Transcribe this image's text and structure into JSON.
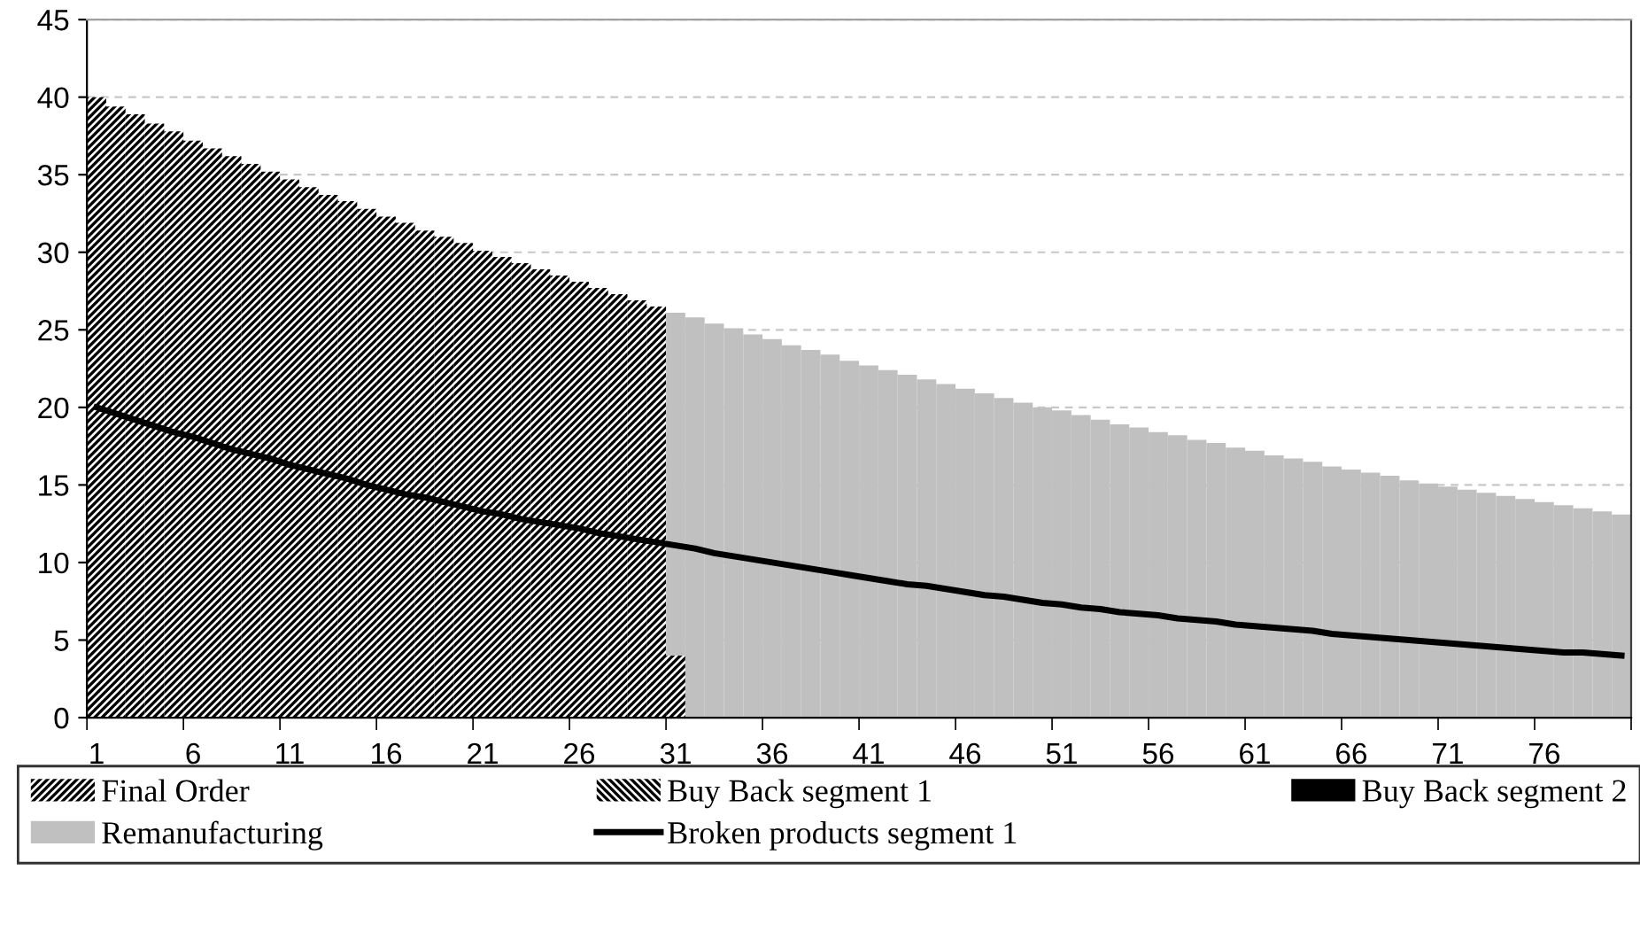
{
  "chart_data": {
    "type": "bar",
    "stacked": true,
    "categories": [
      "1",
      null,
      null,
      null,
      null,
      "6",
      null,
      null,
      null,
      null,
      "11",
      null,
      null,
      null,
      null,
      "16",
      null,
      null,
      null,
      null,
      "21",
      null,
      null,
      null,
      null,
      "26",
      null,
      null,
      null,
      null,
      "31",
      null,
      null,
      null,
      null,
      "36",
      null,
      null,
      null,
      null,
      "41",
      null,
      null,
      null,
      null,
      "46",
      null,
      null,
      null,
      null,
      "51",
      null,
      null,
      null,
      null,
      "56",
      null,
      null,
      null,
      null,
      "61",
      null,
      null,
      null,
      null,
      "66",
      null,
      null,
      null,
      null,
      "71",
      null,
      null,
      null,
      null,
      "76",
      null,
      null,
      null,
      null
    ],
    "ylim": [
      0,
      45
    ],
    "yticks": [
      0,
      5,
      10,
      15,
      20,
      25,
      30,
      35,
      40,
      45
    ],
    "grid": "y",
    "legend": "bottom",
    "series": [
      {
        "name": "Final Order",
        "color": "#000000",
        "values": [
          40.0,
          39.4,
          38.9,
          38.3,
          37.8,
          37.2,
          36.7,
          36.2,
          35.7,
          35.2,
          34.7,
          34.2,
          33.7,
          33.3,
          32.8,
          32.3,
          31.9,
          31.4,
          31.0,
          30.6,
          30.1,
          29.7,
          29.3,
          28.9,
          28.5,
          28.1,
          27.7,
          27.3,
          26.9,
          26.5,
          4.0,
          null,
          null,
          null,
          null,
          null,
          null,
          null,
          null,
          null,
          null,
          null,
          null,
          null,
          null,
          null,
          null,
          null,
          null,
          null,
          null,
          null,
          null,
          null,
          null,
          null,
          null,
          null,
          null,
          null,
          null,
          null,
          null,
          null,
          null,
          null,
          null,
          null,
          null,
          null,
          null,
          null,
          null,
          null,
          null,
          null,
          null,
          null,
          null,
          null
        ]
      },
      {
        "name": "Buy Back segment 1",
        "color": "#000000",
        "values": [
          null,
          null,
          null,
          null,
          null,
          null,
          null,
          null,
          null,
          null,
          null,
          null,
          null,
          null,
          null,
          null,
          null,
          null,
          null,
          null,
          null,
          null,
          null,
          null,
          null,
          null,
          null,
          null,
          null,
          null,
          null,
          null,
          null,
          null,
          null,
          null,
          null,
          null,
          null,
          null,
          null,
          null,
          null,
          null,
          null,
          null,
          null,
          null,
          null,
          null,
          null,
          null,
          null,
          null,
          null,
          null,
          null,
          null,
          null,
          null,
          null,
          null,
          null,
          null,
          null,
          null,
          null,
          null,
          null,
          null,
          null,
          null,
          null,
          null,
          null,
          null,
          null,
          null,
          null,
          null
        ]
      },
      {
        "name": "Buy Back segment 2",
        "color": "#000000",
        "values": [
          null,
          null,
          null,
          null,
          null,
          null,
          null,
          null,
          null,
          null,
          null,
          null,
          null,
          null,
          null,
          null,
          null,
          null,
          null,
          null,
          null,
          null,
          null,
          null,
          null,
          null,
          null,
          null,
          null,
          null,
          null,
          null,
          null,
          null,
          null,
          null,
          null,
          null,
          null,
          null,
          null,
          null,
          null,
          null,
          null,
          null,
          null,
          null,
          null,
          null,
          null,
          null,
          null,
          null,
          null,
          null,
          null,
          null,
          null,
          null,
          null,
          null,
          null,
          null,
          null,
          null,
          null,
          null,
          null,
          null,
          null,
          null,
          null,
          null,
          null,
          null,
          null,
          null,
          null,
          null
        ]
      },
      {
        "name": "Remanufacturing",
        "color": "#c0c0c0",
        "values": [
          null,
          null,
          null,
          null,
          null,
          null,
          null,
          null,
          null,
          null,
          null,
          null,
          null,
          null,
          null,
          null,
          null,
          null,
          null,
          null,
          null,
          null,
          null,
          null,
          null,
          null,
          null,
          null,
          null,
          null,
          22.1,
          25.8,
          25.4,
          25.1,
          24.7,
          24.4,
          24.0,
          23.7,
          23.4,
          23.0,
          22.7,
          22.4,
          22.1,
          21.8,
          21.5,
          21.2,
          20.9,
          20.6,
          20.3,
          20.0,
          19.8,
          19.5,
          19.2,
          18.9,
          18.7,
          18.4,
          18.2,
          17.9,
          17.7,
          17.4,
          17.2,
          16.9,
          16.7,
          16.5,
          16.2,
          16.0,
          15.8,
          15.6,
          15.3,
          15.1,
          14.9,
          14.7,
          14.5,
          14.3,
          14.1,
          13.9,
          13.7,
          13.5,
          13.3,
          13.1
        ]
      },
      {
        "name": "Broken products segment 1",
        "type": "line",
        "color": "#000000",
        "values": [
          20.0,
          19.6,
          19.2,
          18.8,
          18.4,
          18.1,
          17.7,
          17.3,
          17.0,
          16.7,
          16.3,
          16.0,
          15.7,
          15.4,
          15.0,
          14.7,
          14.4,
          14.2,
          13.9,
          13.6,
          13.3,
          13.1,
          12.8,
          12.6,
          12.4,
          12.2,
          11.9,
          11.7,
          11.5,
          11.3,
          11.1,
          10.9,
          10.6,
          10.4,
          10.2,
          10.0,
          9.8,
          9.6,
          9.4,
          9.2,
          9.0,
          8.8,
          8.6,
          8.5,
          8.3,
          8.1,
          7.9,
          7.8,
          7.6,
          7.4,
          7.3,
          7.1,
          7.0,
          6.8,
          6.7,
          6.6,
          6.4,
          6.3,
          6.2,
          6.0,
          5.9,
          5.8,
          5.7,
          5.6,
          5.4,
          5.3,
          5.2,
          5.1,
          5.0,
          4.9,
          4.8,
          4.7,
          4.6,
          4.5,
          4.4,
          4.3,
          4.2,
          4.2,
          4.1,
          4.0
        ]
      }
    ]
  }
}
